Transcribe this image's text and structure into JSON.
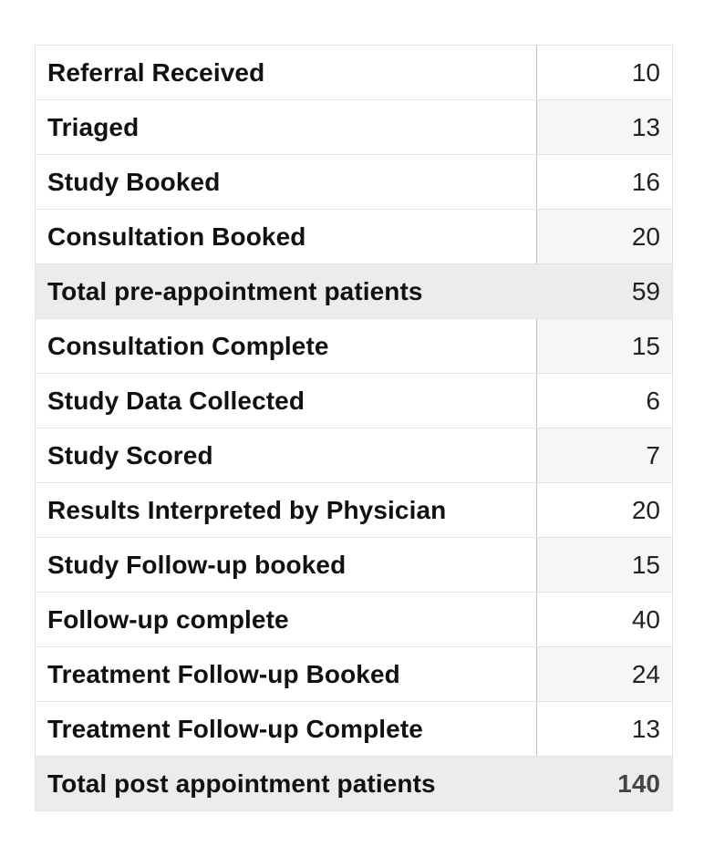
{
  "table": {
    "rows": [
      {
        "label": "Referral Received",
        "value": "10"
      },
      {
        "label": "Triaged",
        "value": "13"
      },
      {
        "label": "Study Booked",
        "value": "16"
      },
      {
        "label": "Consultation Booked",
        "value": "20"
      },
      {
        "label": "Total pre-appointment patients",
        "value": "59"
      },
      {
        "label": "Consultation Complete",
        "value": "15"
      },
      {
        "label": "Study Data Collected",
        "value": "6"
      },
      {
        "label": "Study Scored",
        "value": "7"
      },
      {
        "label": "Results Interpreted by Physician",
        "value": "20"
      },
      {
        "label": "Study Follow-up booked",
        "value": "15"
      },
      {
        "label": "Follow-up complete",
        "value": "40"
      },
      {
        "label": "Treatment Follow-up Booked",
        "value": "24"
      },
      {
        "label": "Treatment Follow-up Complete",
        "value": "13"
      },
      {
        "label": "Total post appointment patients",
        "value": "140"
      }
    ]
  }
}
